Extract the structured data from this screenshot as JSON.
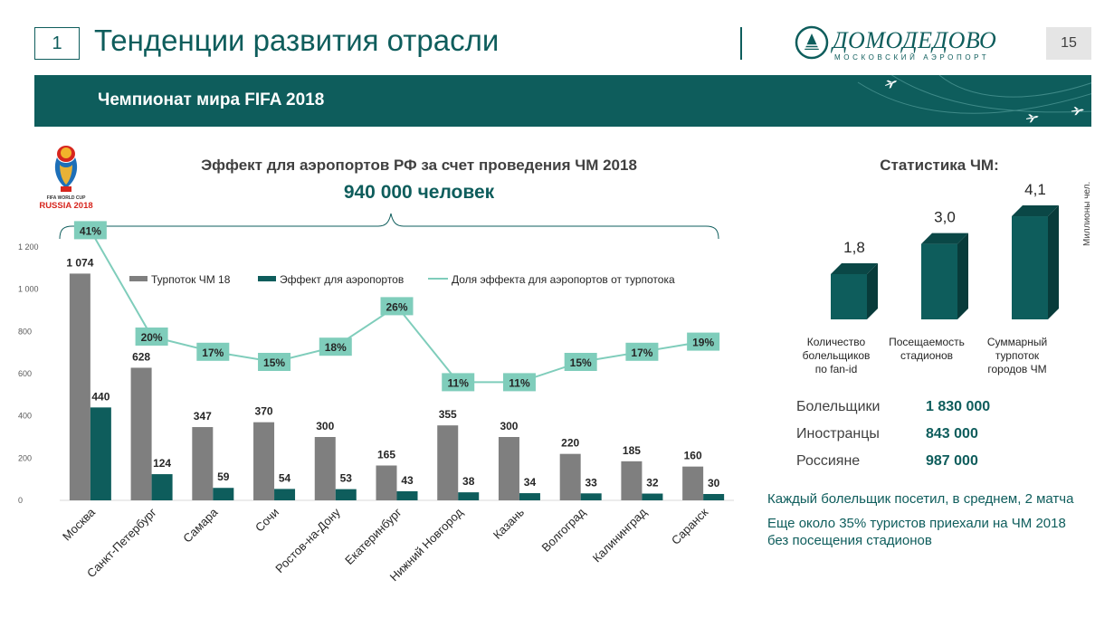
{
  "header": {
    "slide_number": "1",
    "title": "Тенденции развития отрасли",
    "page_number": "15",
    "logo_name": "ДОМОДЕДОВО",
    "logo_subtitle": "МОСКОВСКИЙ АЭРОПОРТ"
  },
  "banner": {
    "title": "Чемпионат мира FIFA 2018"
  },
  "fifa_logo": {
    "line1": "FIFA WORLD CUP",
    "line2": "RUSSIA 2018"
  },
  "main_chart": {
    "title": "Эффект для аэропортов РФ за счет проведения ЧМ 2018",
    "subtitle": "940 000 человек"
  },
  "chart_data": [
    {
      "type": "bar",
      "categories": [
        "Москва",
        "Санкт-Петербург",
        "Самара",
        "Сочи",
        "Ростов-на-Дону",
        "Екатеринбург",
        "Нижний Новгород",
        "Казань",
        "Волгоград",
        "Калининград",
        "Саранск"
      ],
      "series": [
        {
          "name": "Турпоток  ЧМ 18",
          "type": "bar",
          "color": "#7f7f7f",
          "values": [
            1074,
            628,
            347,
            370,
            300,
            165,
            355,
            300,
            220,
            185,
            160
          ],
          "labels": [
            "1 074",
            "628",
            "347",
            "370",
            "300",
            "165",
            "355",
            "300",
            "220",
            "185",
            "160"
          ]
        },
        {
          "name": "Эффект для аэропортов",
          "type": "bar",
          "color": "#0e5d5c",
          "values": [
            440,
            124,
            59,
            54,
            53,
            43,
            38,
            34,
            33,
            32,
            30
          ],
          "labels": [
            "440",
            "124",
            "59",
            "54",
            "53",
            "43",
            "38",
            "34",
            "33",
            "32",
            "30"
          ]
        },
        {
          "name": "Доля эффекта для аэропортов  от турпотока",
          "type": "line",
          "color": "#7fcdbb",
          "values": [
            41,
            20,
            17,
            15,
            18,
            26,
            11,
            11,
            15,
            17,
            19
          ],
          "labels": [
            "41%",
            "20%",
            "17%",
            "15%",
            "18%",
            "26%",
            "11%",
            "11%",
            "15%",
            "17%",
            "19%"
          ]
        }
      ],
      "ylim": [
        0,
        1200
      ],
      "yticks": [
        0,
        200,
        400,
        600,
        800,
        1000,
        1200
      ],
      "ytick_labels": [
        "0",
        "200",
        "400",
        "600",
        "800",
        "1 000",
        "1 200"
      ],
      "legend": "top",
      "grid": false
    },
    {
      "type": "bar",
      "title": "Статистика ЧМ:",
      "ylabel": "Миллионы чел.",
      "categories": [
        "Количество болельщиков по fan-id",
        "Посещаемость стадионов",
        "Суммарный турпоток городов ЧМ"
      ],
      "category_lines": [
        [
          "Количество",
          "болельщиков",
          "по fan-id"
        ],
        [
          "Посещаемость",
          "стадионов"
        ],
        [
          "Суммарный",
          "турпоток",
          "городов ЧМ"
        ]
      ],
      "values": [
        1.8,
        3.0,
        4.1
      ],
      "labels": [
        "1,8",
        "3,0",
        "4,1"
      ],
      "color": "#0e5d5c"
    }
  ],
  "stats": [
    {
      "label": "Болельщики",
      "value": "1 830 000"
    },
    {
      "label": "Иностранцы",
      "value": "843 000"
    },
    {
      "label": "Россияне",
      "value": "987 000"
    }
  ],
  "notes": [
    "Каждый болельщик  посетил, в среднем, 2 матча",
    "Еще около 35% туристов приехали  на ЧМ 2018",
    "без посещения  стадионов"
  ]
}
